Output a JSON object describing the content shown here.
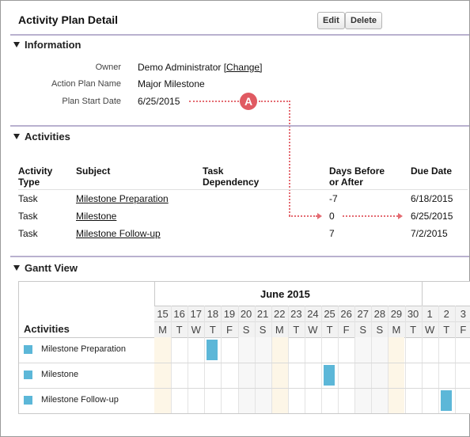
{
  "header": {
    "title": "Activity Plan Detail",
    "edit_label": "Edit",
    "delete_label": "Delete"
  },
  "information": {
    "heading": "Information",
    "owner_label": "Owner",
    "owner_value": "Demo Administrator",
    "owner_change": "[Change]",
    "action_plan_label": "Action Plan Name",
    "action_plan_value": "Major Milestone",
    "start_label": "Plan Start Date",
    "start_value": "6/25/2015",
    "annotation": "A"
  },
  "activities": {
    "heading": "Activities",
    "columns": {
      "type_1": "Activity",
      "type_2": "Type",
      "subject": "Subject",
      "dep_1": "Task",
      "dep_2": "Dependency",
      "days_1": "Days Before",
      "days_2": "or After",
      "due": "Due Date"
    },
    "rows": [
      {
        "type": "Task",
        "subject": "Milestone Preparation",
        "dependency": "",
        "days": "-7",
        "due": "6/18/2015"
      },
      {
        "type": "Task",
        "subject": "Milestone",
        "dependency": "",
        "days": "0",
        "due": "6/25/2015"
      },
      {
        "type": "Task",
        "subject": "Milestone Follow-up",
        "dependency": "",
        "days": "7",
        "due": "7/2/2015"
      }
    ]
  },
  "gantt": {
    "heading": "Gantt View",
    "activities_label": "Activities",
    "month": "June 2015",
    "days": [
      "15",
      "16",
      "17",
      "18",
      "19",
      "20",
      "21",
      "22",
      "23",
      "24",
      "25",
      "26",
      "27",
      "28",
      "29",
      "30",
      "1",
      "2",
      "3"
    ],
    "weekdays": [
      "M",
      "T",
      "W",
      "T",
      "F",
      "S",
      "S",
      "M",
      "T",
      "W",
      "T",
      "F",
      "S",
      "S",
      "M",
      "T",
      "W",
      "T",
      "F"
    ],
    "items": [
      {
        "name": "Milestone Preparation",
        "day_index": 3
      },
      {
        "name": "Milestone",
        "day_index": 10
      },
      {
        "name": "Milestone Follow-up",
        "day_index": 17
      }
    ],
    "bar_color": "#5cb7d8"
  }
}
